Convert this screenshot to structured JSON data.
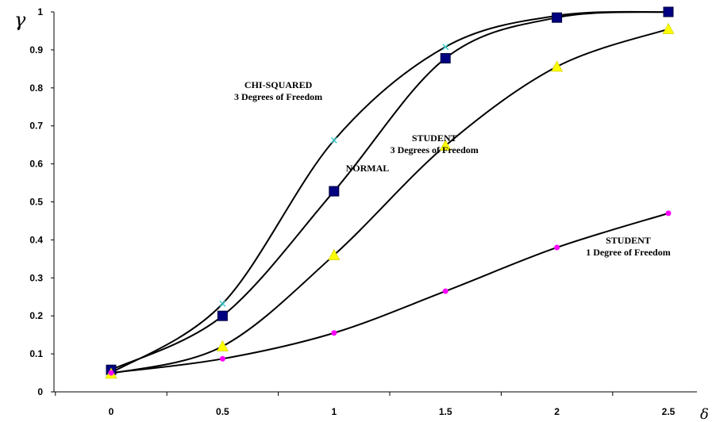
{
  "chart_data": {
    "type": "line",
    "title": "",
    "xlabel": "δ",
    "ylabel": "γ",
    "xlim": [
      0,
      2.5
    ],
    "ylim": [
      0,
      1
    ],
    "x_ticks": [
      "0",
      "0.5",
      "1",
      "1.5",
      "2",
      "2.5"
    ],
    "y_ticks": [
      "0",
      "0.1",
      "0.2",
      "0.3",
      "0.4",
      "0.5",
      "0.6",
      "0.7",
      "0.8",
      "0.9",
      "1"
    ],
    "grid": false,
    "legend": "none",
    "series": [
      {
        "name": "CHI-SQUARED 3 Degrees of Freedom",
        "marker": "x",
        "color": "#33CCCC",
        "x": [
          0,
          0.5,
          1,
          1.5,
          2,
          2.5
        ],
        "y": [
          0.05,
          0.232,
          0.662,
          0.908,
          0.99,
          1.0
        ]
      },
      {
        "name": "NORMAL",
        "marker": "square",
        "color": "#000080",
        "x": [
          0,
          0.5,
          1,
          1.5,
          2,
          2.5
        ],
        "y": [
          0.058,
          0.2,
          0.528,
          0.878,
          0.985,
          1.0
        ]
      },
      {
        "name": "STUDENT 3 Degrees of Freedom",
        "marker": "triangle",
        "color": "#FFFF00",
        "x": [
          0,
          0.5,
          1,
          1.5,
          2,
          2.5
        ],
        "y": [
          0.048,
          0.12,
          0.36,
          0.648,
          0.856,
          0.955
        ]
      },
      {
        "name": "STUDENT 1 Degree of Freedom",
        "marker": "circle",
        "color": "#FF00FF",
        "x": [
          0,
          0.5,
          1,
          1.5,
          2,
          2.5
        ],
        "y": [
          0.05,
          0.087,
          0.155,
          0.265,
          0.38,
          0.47
        ]
      }
    ],
    "annotations": [
      {
        "lines": [
          "CHI-SQUARED",
          "3 Degrees of Freedom"
        ],
        "x": 0.75,
        "y": 0.8
      },
      {
        "lines": [
          "NORMAL"
        ],
        "x": 1.15,
        "y": 0.58
      },
      {
        "lines": [
          "STUDENT",
          "3 Degrees of Freedom"
        ],
        "x": 1.45,
        "y": 0.66
      },
      {
        "lines": [
          "STUDENT",
          "1 Degree of Freedom"
        ],
        "x": 2.32,
        "y": 0.39
      }
    ]
  }
}
